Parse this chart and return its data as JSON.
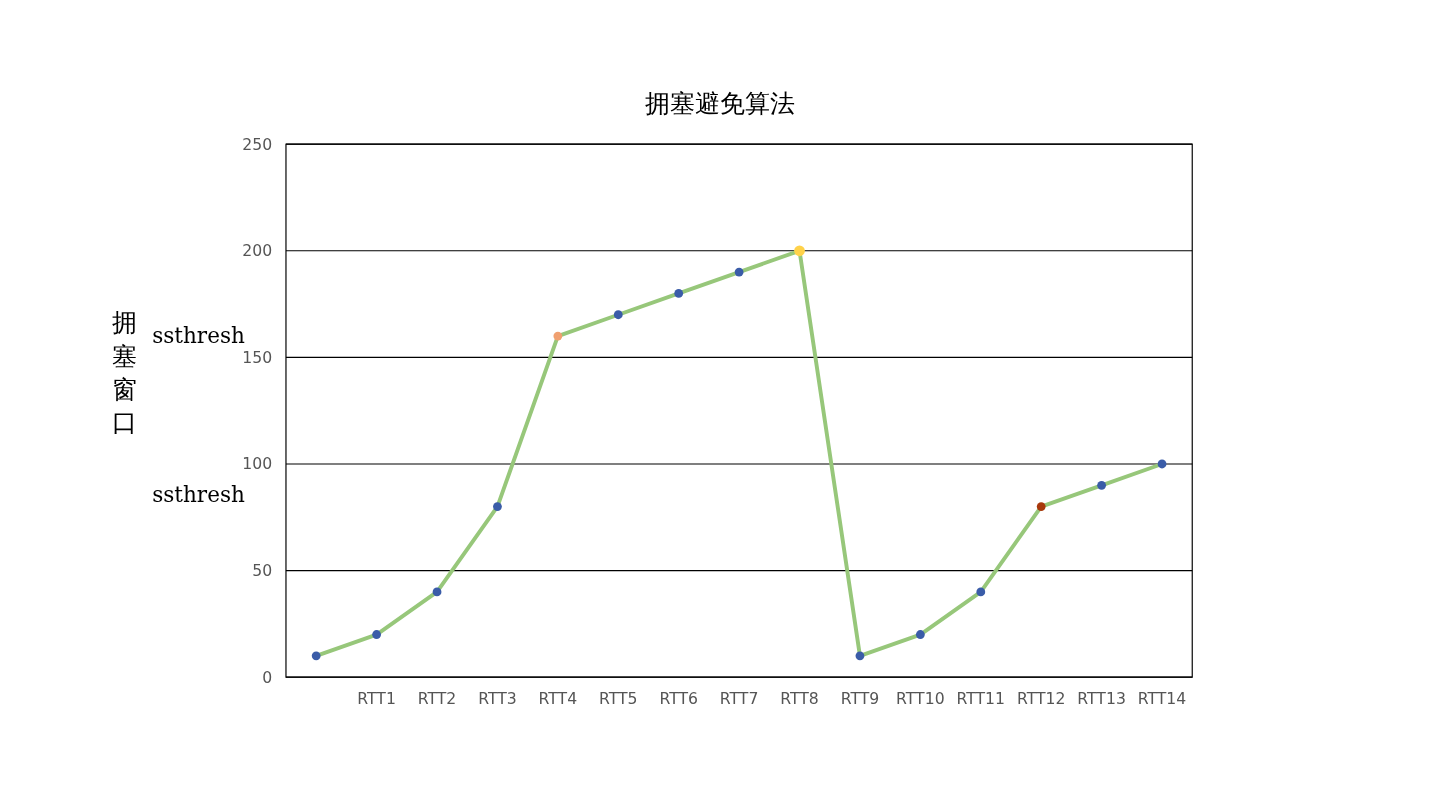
{
  "chart_data": {
    "type": "line",
    "title": "拥塞避免算法",
    "ylabel": "拥塞窗口",
    "categories": [
      null,
      "RTT1",
      "RTT2",
      "RTT3",
      "RTT4",
      "RTT5",
      "RTT6",
      "RTT7",
      "RTT8",
      "RTT9",
      "RTT10",
      "RTT11",
      "RTT12",
      "RTT13",
      "RTT14"
    ],
    "series": [
      {
        "color": "#97c77a",
        "values": [
          10,
          20,
          40,
          80,
          160,
          170,
          180,
          190,
          200,
          10,
          20,
          40,
          80,
          90,
          100
        ],
        "colors": [
          "#3a5ca8",
          "#3a5ca8",
          "#3a5ca8",
          "#3a5ca8",
          "#f0a070",
          "#3a5ca8",
          "#3a5ca8",
          "#3a5ca8",
          "#ffd24a",
          "#3a5ca8",
          "#3a5ca8",
          "#3a5ca8",
          "#a8380c",
          "#3a5ca8",
          "#3a5ca8"
        ]
      }
    ],
    "ylim": [
      0,
      250
    ],
    "yticks": [
      0,
      50,
      100,
      150,
      200,
      250
    ],
    "grid": "y",
    "marker": "circle",
    "line_style": "solid",
    "annotations": [
      "ssthresh",
      "ssthresh"
    ]
  }
}
